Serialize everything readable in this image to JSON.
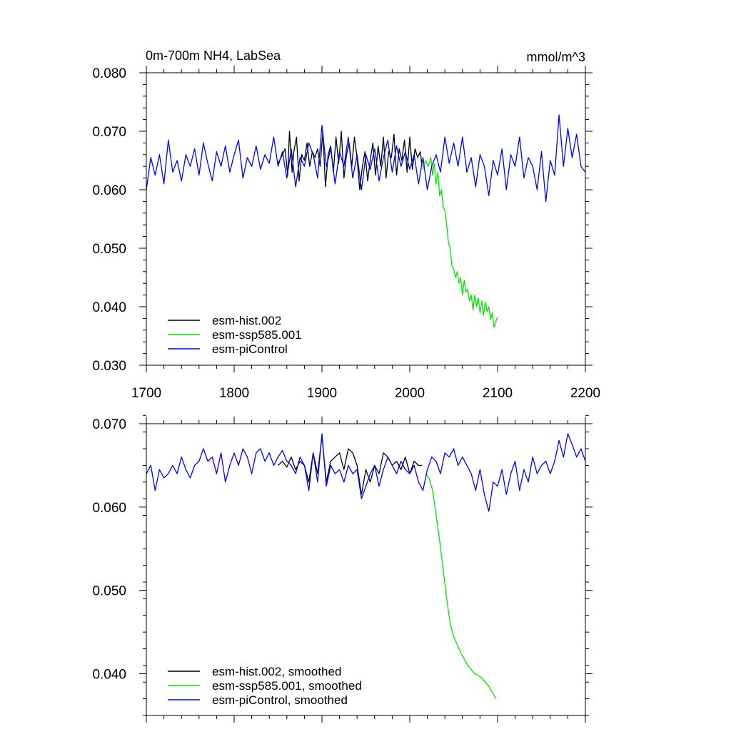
{
  "chart_data": [
    {
      "type": "line",
      "title": "0m-700m NH4, LabSea",
      "units": "mmol/m^3",
      "xlim": [
        1700,
        2200
      ],
      "ylim": [
        0.03,
        0.08
      ],
      "xticks": [
        1700,
        1800,
        1900,
        2000,
        2100,
        2200
      ],
      "xtick_labels": [
        "1700",
        "1800",
        "1900",
        "2000",
        "2100",
        "2200"
      ],
      "yticks": [
        0.03,
        0.04,
        0.05,
        0.06,
        0.07,
        0.08
      ],
      "ytick_labels": [
        "0.030",
        "0.040",
        "0.050",
        "0.060",
        "0.070",
        "0.080"
      ],
      "legend_position": "bottom-left",
      "series": [
        {
          "name": "esm-hist.002",
          "color": "#000000",
          "x": [
            1850,
            1855,
            1858,
            1861,
            1863,
            1866,
            1868,
            1871,
            1874,
            1877,
            1880,
            1883,
            1886,
            1889,
            1892,
            1895,
            1898,
            1901,
            1904,
            1907,
            1910,
            1913,
            1916,
            1919,
            1922,
            1925,
            1928,
            1931,
            1934,
            1937,
            1940,
            1943,
            1946,
            1949,
            1952,
            1955,
            1958,
            1961,
            1964,
            1967,
            1970,
            1973,
            1976,
            1979,
            1982,
            1985,
            1988,
            1991,
            1994,
            1997,
            2000,
            2003,
            2006,
            2009,
            2012,
            2014
          ],
          "values": [
            0.0645,
            0.066,
            0.067,
            0.0625,
            0.07,
            0.063,
            0.0665,
            0.069,
            0.0615,
            0.066,
            0.065,
            0.068,
            0.064,
            0.0665,
            0.0655,
            0.067,
            0.064,
            0.07,
            0.0605,
            0.066,
            0.0675,
            0.063,
            0.069,
            0.0645,
            0.07,
            0.062,
            0.066,
            0.068,
            0.064,
            0.069,
            0.0655,
            0.06,
            0.064,
            0.0665,
            0.0615,
            0.065,
            0.068,
            0.0625,
            0.0675,
            0.064,
            0.069,
            0.062,
            0.0665,
            0.0655,
            0.0695,
            0.0625,
            0.067,
            0.065,
            0.0685,
            0.063,
            0.069,
            0.0635,
            0.067,
            0.0655,
            0.0665,
            0.064
          ]
        },
        {
          "name": "esm-ssp585.001",
          "color": "#00e600",
          "x": [
            2015,
            2018,
            2021,
            2024,
            2026,
            2028,
            2030,
            2032,
            2034,
            2036,
            2038,
            2040,
            2042,
            2044,
            2046,
            2048,
            2050,
            2052,
            2054,
            2056,
            2058,
            2060,
            2062,
            2064,
            2066,
            2068,
            2070,
            2072,
            2074,
            2076,
            2078,
            2080,
            2082,
            2084,
            2086,
            2088,
            2090,
            2092,
            2094,
            2096,
            2098,
            2100
          ],
          "values": [
            0.0635,
            0.065,
            0.064,
            0.0655,
            0.0625,
            0.0645,
            0.061,
            0.063,
            0.059,
            0.06,
            0.057,
            0.0565,
            0.054,
            0.051,
            0.05,
            0.047,
            0.0465,
            0.045,
            0.046,
            0.044,
            0.045,
            0.042,
            0.0445,
            0.0425,
            0.043,
            0.041,
            0.042,
            0.0395,
            0.042,
            0.04,
            0.0415,
            0.039,
            0.041,
            0.0385,
            0.0408,
            0.0392,
            0.04,
            0.0378,
            0.039,
            0.0365,
            0.0375,
            0.0382
          ]
        },
        {
          "name": "esm-piControl",
          "color": "#0000ff",
          "x": [
            1700,
            1705,
            1710,
            1715,
            1720,
            1725,
            1730,
            1735,
            1740,
            1745,
            1750,
            1755,
            1760,
            1765,
            1770,
            1775,
            1780,
            1785,
            1790,
            1795,
            1800,
            1805,
            1810,
            1815,
            1820,
            1825,
            1830,
            1835,
            1840,
            1845,
            1850,
            1855,
            1860,
            1865,
            1870,
            1875,
            1880,
            1885,
            1890,
            1895,
            1900,
            1905,
            1910,
            1915,
            1920,
            1925,
            1930,
            1935,
            1940,
            1945,
            1950,
            1955,
            1960,
            1965,
            1970,
            1975,
            1980,
            1985,
            1990,
            1995,
            2000,
            2005,
            2010,
            2015,
            2020,
            2025,
            2030,
            2035,
            2040,
            2045,
            2050,
            2055,
            2060,
            2065,
            2070,
            2075,
            2080,
            2085,
            2090,
            2095,
            2100,
            2105,
            2110,
            2115,
            2120,
            2125,
            2130,
            2135,
            2140,
            2145,
            2150,
            2155,
            2160,
            2165,
            2170,
            2175,
            2180,
            2185,
            2190,
            2195,
            2200
          ],
          "values": [
            0.06,
            0.0655,
            0.0625,
            0.066,
            0.061,
            0.0685,
            0.063,
            0.065,
            0.0615,
            0.066,
            0.064,
            0.067,
            0.0625,
            0.068,
            0.0645,
            0.0615,
            0.0665,
            0.064,
            0.0675,
            0.063,
            0.066,
            0.0685,
            0.062,
            0.0655,
            0.064,
            0.0675,
            0.0635,
            0.066,
            0.0645,
            0.069,
            0.064,
            0.0665,
            0.062,
            0.067,
            0.0605,
            0.0655,
            0.064,
            0.068,
            0.066,
            0.062,
            0.071,
            0.064,
            0.067,
            0.061,
            0.0665,
            0.064,
            0.069,
            0.062,
            0.066,
            0.06,
            0.066,
            0.0635,
            0.067,
            0.0615,
            0.0655,
            0.0685,
            0.063,
            0.0675,
            0.064,
            0.0665,
            0.0635,
            0.066,
            0.061,
            0.0655,
            0.06,
            0.064,
            0.066,
            0.063,
            0.069,
            0.0645,
            0.068,
            0.064,
            0.069,
            0.063,
            0.0655,
            0.0605,
            0.066,
            0.064,
            0.059,
            0.065,
            0.0625,
            0.067,
            0.06,
            0.066,
            0.064,
            0.069,
            0.062,
            0.0655,
            0.064,
            0.06,
            0.0665,
            0.058,
            0.065,
            0.0625,
            0.0728,
            0.064,
            0.0705,
            0.0655,
            0.0695,
            0.064,
            0.063
          ]
        }
      ]
    },
    {
      "type": "line",
      "xlim": [
        1700,
        2200
      ],
      "ylim": [
        0.035,
        0.07
      ],
      "xticks": [
        1700,
        1800,
        1900,
        2000,
        2100,
        2200
      ],
      "yticks": [
        0.04,
        0.05,
        0.06,
        0.07
      ],
      "ytick_labels": [
        "0.040",
        "0.050",
        "0.060",
        "0.070"
      ],
      "legend_position": "bottom-left",
      "series": [
        {
          "name": "esm-hist.002, smoothed",
          "color": "#000000",
          "x": [
            1850,
            1855,
            1860,
            1865,
            1870,
            1875,
            1880,
            1885,
            1890,
            1895,
            1900,
            1905,
            1910,
            1915,
            1920,
            1925,
            1930,
            1935,
            1940,
            1945,
            1950,
            1955,
            1960,
            1965,
            1970,
            1975,
            1980,
            1985,
            1990,
            1995,
            2000,
            2005,
            2010,
            2014
          ],
          "values": [
            0.065,
            0.0655,
            0.0648,
            0.066,
            0.0645,
            0.0655,
            0.065,
            0.063,
            0.0665,
            0.064,
            0.0685,
            0.063,
            0.0655,
            0.066,
            0.0665,
            0.0645,
            0.067,
            0.0665,
            0.065,
            0.0615,
            0.0645,
            0.063,
            0.065,
            0.064,
            0.0665,
            0.066,
            0.065,
            0.0655,
            0.0645,
            0.066,
            0.064,
            0.0655,
            0.065,
            0.065
          ]
        },
        {
          "name": "esm-ssp585.001, smoothed",
          "color": "#00e600",
          "x": [
            2018,
            2022,
            2026,
            2030,
            2034,
            2038,
            2042,
            2046,
            2050,
            2054,
            2058,
            2062,
            2066,
            2070,
            2074,
            2078,
            2082,
            2086,
            2090,
            2094,
            2098
          ],
          "values": [
            0.064,
            0.0635,
            0.062,
            0.059,
            0.056,
            0.0525,
            0.049,
            0.046,
            0.0445,
            0.0435,
            0.0425,
            0.0418,
            0.041,
            0.0405,
            0.04,
            0.0398,
            0.0395,
            0.039,
            0.0385,
            0.0378,
            0.037
          ]
        },
        {
          "name": "esm-piControl, smoothed",
          "color": "#0000ff",
          "x": [
            1700,
            1705,
            1710,
            1715,
            1720,
            1725,
            1730,
            1735,
            1740,
            1745,
            1750,
            1755,
            1760,
            1765,
            1770,
            1775,
            1780,
            1785,
            1790,
            1795,
            1800,
            1805,
            1810,
            1815,
            1820,
            1825,
            1830,
            1835,
            1840,
            1845,
            1850,
            1855,
            1860,
            1865,
            1870,
            1875,
            1880,
            1885,
            1890,
            1895,
            1900,
            1905,
            1910,
            1915,
            1920,
            1925,
            1930,
            1935,
            1940,
            1945,
            1950,
            1955,
            1960,
            1965,
            1970,
            1975,
            1980,
            1985,
            1990,
            1995,
            2000,
            2005,
            2010,
            2015,
            2020,
            2025,
            2030,
            2035,
            2040,
            2045,
            2050,
            2055,
            2060,
            2065,
            2070,
            2075,
            2080,
            2085,
            2090,
            2095,
            2100,
            2105,
            2110,
            2115,
            2120,
            2125,
            2130,
            2135,
            2140,
            2145,
            2150,
            2155,
            2160,
            2165,
            2170,
            2175,
            2180,
            2185,
            2190,
            2195,
            2200
          ],
          "values": [
            0.064,
            0.065,
            0.062,
            0.0645,
            0.0635,
            0.064,
            0.065,
            0.064,
            0.066,
            0.0645,
            0.0635,
            0.065,
            0.0655,
            0.067,
            0.0655,
            0.066,
            0.064,
            0.0665,
            0.063,
            0.065,
            0.0665,
            0.065,
            0.067,
            0.066,
            0.064,
            0.0665,
            0.067,
            0.0655,
            0.0665,
            0.065,
            0.066,
            0.0668,
            0.0655,
            0.065,
            0.064,
            0.066,
            0.065,
            0.062,
            0.0665,
            0.063,
            0.0688,
            0.0625,
            0.065,
            0.064,
            0.0645,
            0.063,
            0.065,
            0.064,
            0.0645,
            0.061,
            0.0625,
            0.064,
            0.065,
            0.0625,
            0.0645,
            0.066,
            0.065,
            0.064,
            0.0655,
            0.0645,
            0.064,
            0.065,
            0.063,
            0.062,
            0.0645,
            0.066,
            0.0655,
            0.064,
            0.0665,
            0.066,
            0.067,
            0.065,
            0.066,
            0.065,
            0.064,
            0.062,
            0.0645,
            0.0615,
            0.0595,
            0.063,
            0.0625,
            0.0645,
            0.0615,
            0.064,
            0.0655,
            0.062,
            0.0645,
            0.063,
            0.066,
            0.064,
            0.065,
            0.0655,
            0.064,
            0.0655,
            0.068,
            0.066,
            0.0688,
            0.0675,
            0.066,
            0.067,
            0.0655
          ]
        }
      ]
    }
  ]
}
